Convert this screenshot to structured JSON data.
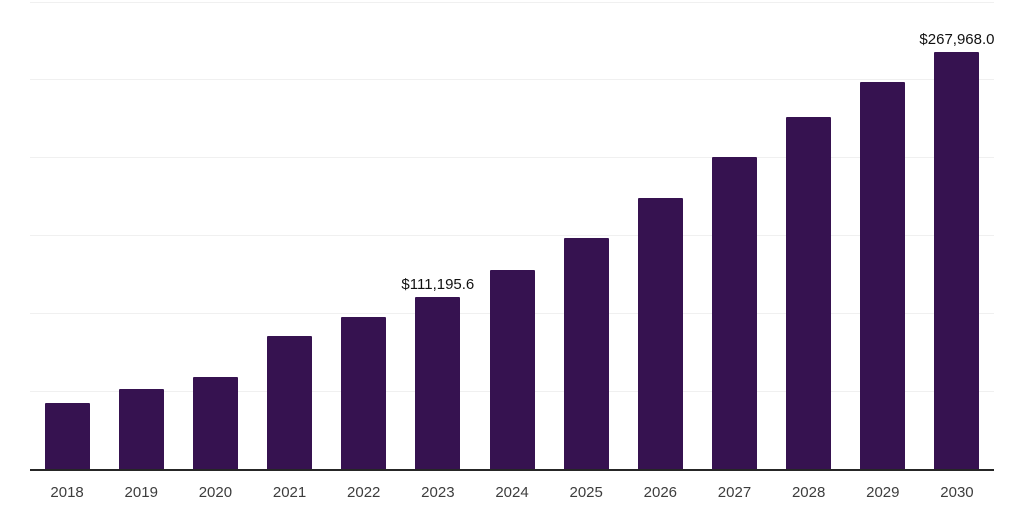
{
  "chart_data": {
    "type": "bar",
    "title": "",
    "xlabel": "",
    "ylabel": "",
    "categories": [
      "2018",
      "2019",
      "2020",
      "2021",
      "2022",
      "2023",
      "2024",
      "2025",
      "2026",
      "2027",
      "2028",
      "2029",
      "2030"
    ],
    "values": [
      43000,
      51900,
      59900,
      85900,
      98100,
      111195.6,
      128200,
      148700,
      174400,
      200600,
      226300,
      248700,
      267968.0
    ],
    "value_labels": [
      "",
      "",
      "",
      "",
      "",
      "$111,195.6",
      "",
      "",
      "",
      "",
      "",
      "",
      "$267,968.0"
    ],
    "ylim": [
      0,
      300000
    ],
    "grid_step": 50000,
    "grid": "horizontal-only",
    "legend_position": "none",
    "y_tick_labels_visible": false,
    "colors": {
      "bar": "#361250",
      "axis_line": "#262626",
      "gridline": "#f0f0f0",
      "tick_label": "#3d3d3d",
      "value_label": "#111111",
      "background": "#ffffff"
    }
  }
}
